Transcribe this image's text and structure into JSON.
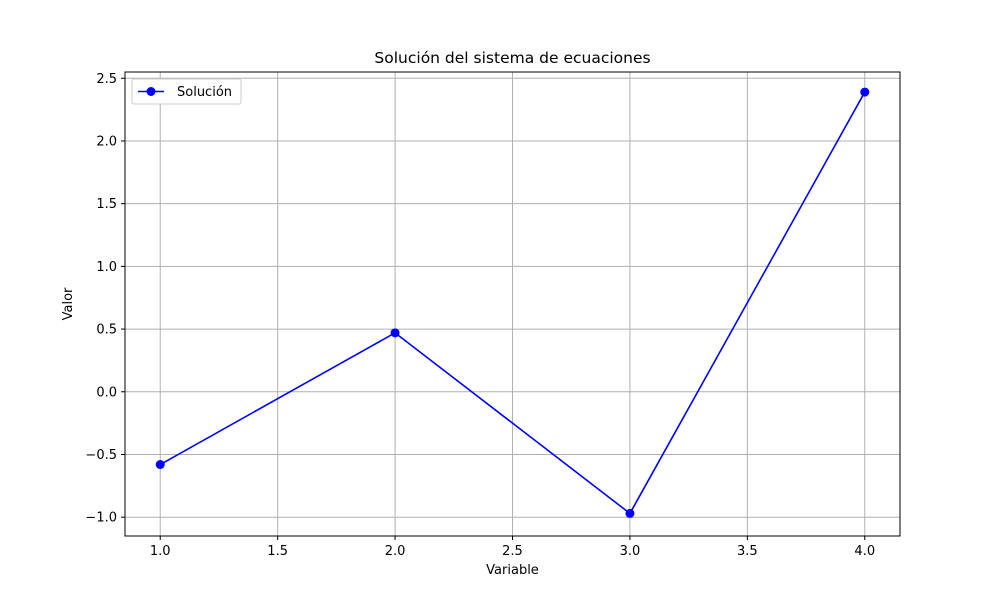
{
  "chart_data": {
    "type": "line",
    "title": "Solución del sistema de ecuaciones",
    "xlabel": "Variable",
    "ylabel": "Valor",
    "xlim": [
      0.85,
      4.15
    ],
    "ylim": [
      -1.15,
      2.55
    ],
    "xticks": [
      1.0,
      1.5,
      2.0,
      2.5,
      3.0,
      3.5,
      4.0
    ],
    "xtick_labels": [
      "1.0",
      "1.5",
      "2.0",
      "2.5",
      "3.0",
      "3.5",
      "4.0"
    ],
    "yticks": [
      -1.0,
      -0.5,
      0.0,
      0.5,
      1.0,
      1.5,
      2.0,
      2.5
    ],
    "ytick_labels": [
      "−1.0",
      "−0.5",
      "0.0",
      "0.5",
      "1.0",
      "1.5",
      "2.0",
      "2.5"
    ],
    "grid": true,
    "legend_position": "top-left",
    "series": [
      {
        "name": "Solución",
        "color": "#0000ff",
        "marker": "circle",
        "x": [
          1,
          2,
          3,
          4
        ],
        "y": [
          -0.58,
          0.47,
          -0.97,
          2.39
        ]
      }
    ]
  }
}
